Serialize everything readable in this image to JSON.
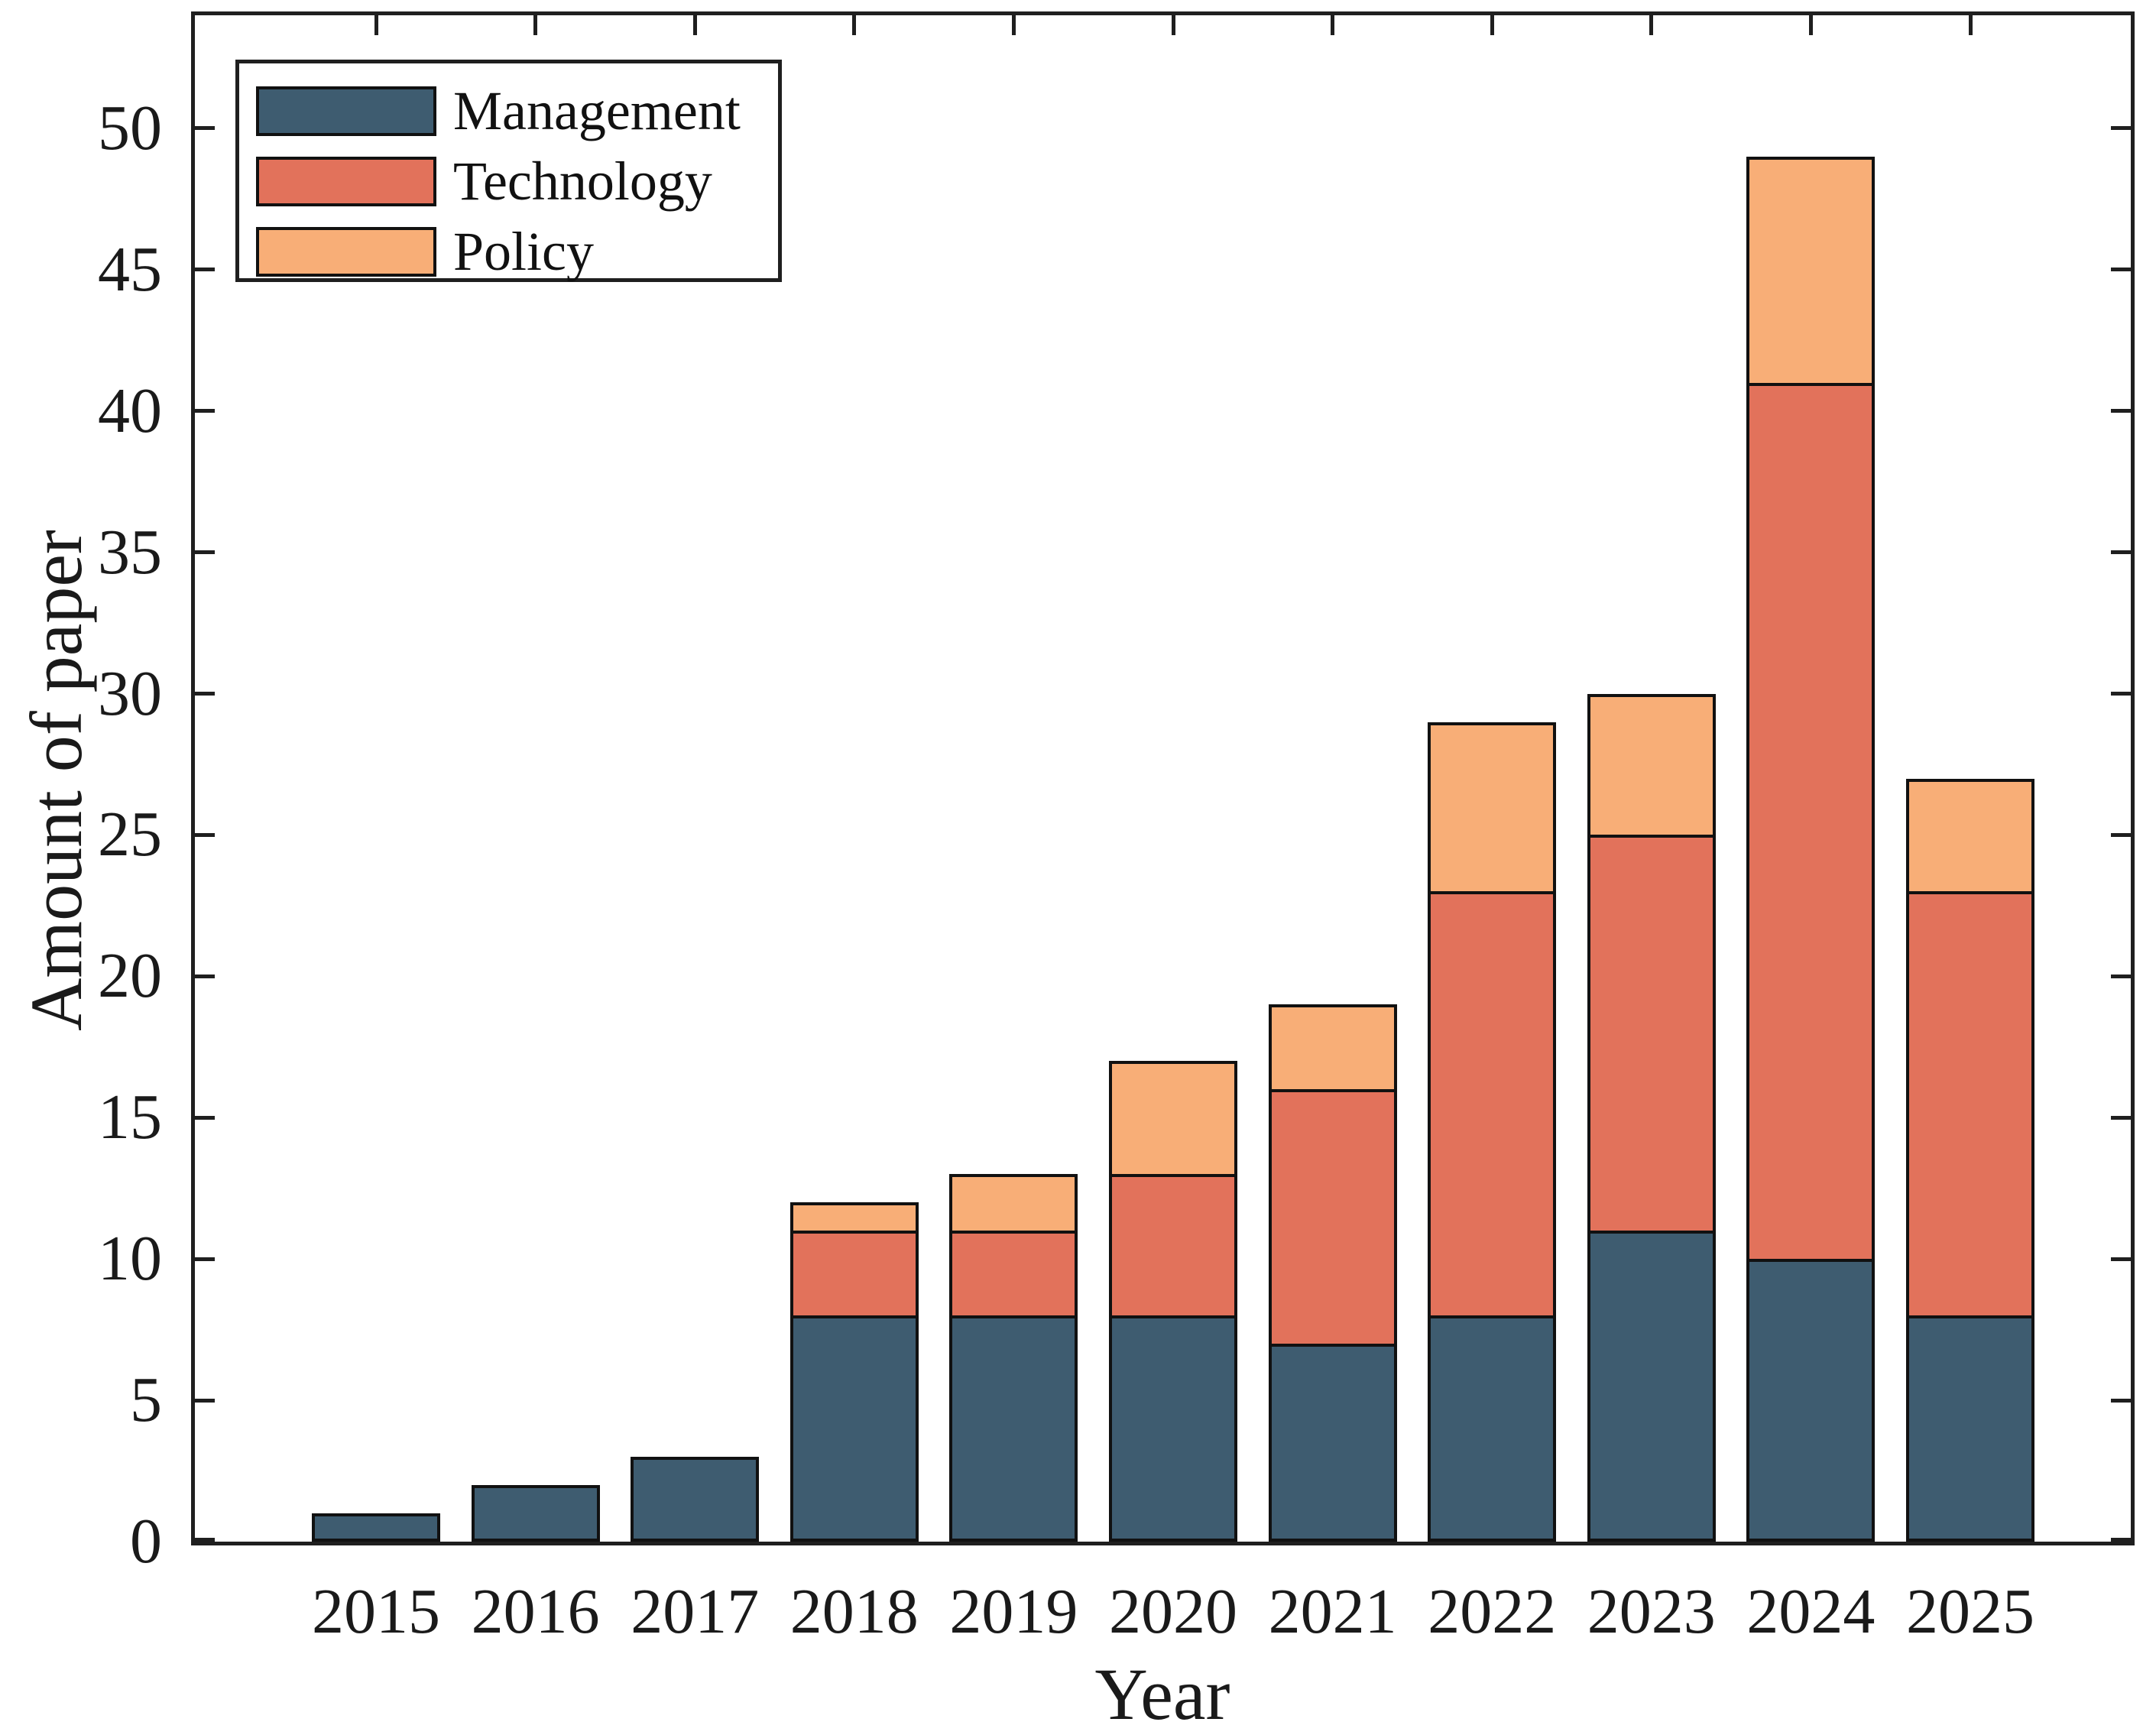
{
  "chart_data": {
    "type": "bar",
    "stacked": true,
    "title": "",
    "xlabel": "Year",
    "ylabel": "Amount of paper",
    "categories": [
      "2015",
      "2016",
      "2017",
      "2018",
      "2019",
      "2020",
      "2021",
      "2022",
      "2023",
      "2024",
      "2025"
    ],
    "series": [
      {
        "name": "Management",
        "color": "#3E5C70",
        "values": [
          1,
          2,
          3,
          8,
          8,
          8,
          7,
          8,
          11,
          10,
          8
        ]
      },
      {
        "name": "Technology",
        "color": "#E2725B",
        "values": [
          0,
          0,
          0,
          3,
          3,
          5,
          9,
          15,
          14,
          31,
          15
        ]
      },
      {
        "name": "Policy",
        "color": "#F8AE77",
        "values": [
          0,
          0,
          0,
          1,
          2,
          4,
          3,
          6,
          5,
          8,
          4
        ]
      }
    ],
    "totals": [
      1,
      2,
      3,
      12,
      13,
      17,
      19,
      29,
      30,
      49,
      27
    ],
    "ylim": [
      0,
      54
    ],
    "yticks": [
      0,
      5,
      10,
      15,
      20,
      25,
      30,
      35,
      40,
      45,
      50
    ],
    "grid": false,
    "legend": {
      "position": "top-left",
      "entries": [
        "Management",
        "Technology",
        "Policy"
      ]
    },
    "bar_edge_color": "#111111",
    "axis_color": "#1f1f1f"
  }
}
